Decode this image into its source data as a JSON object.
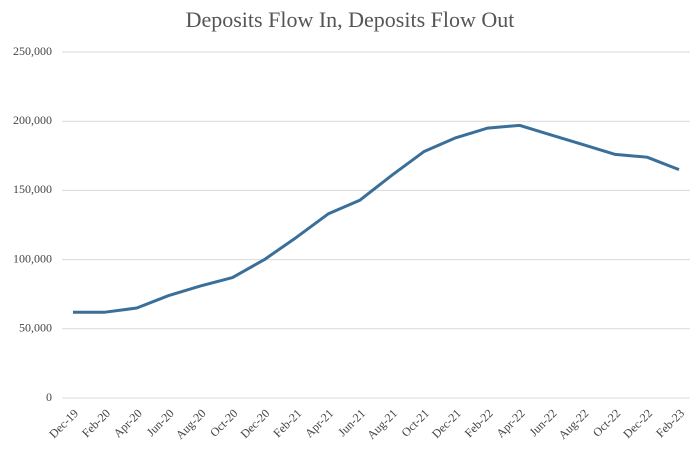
{
  "chart_data": {
    "type": "line",
    "title": "Deposits Flow In, Deposits Flow Out",
    "categories": [
      "Dec-19",
      "Feb-20",
      "Apr-20",
      "Jun-20",
      "Aug-20",
      "Oct-20",
      "Dec-20",
      "Feb-21",
      "Apr-21",
      "Jun-21",
      "Aug-21",
      "Oct-21",
      "Dec-21",
      "Feb-22",
      "Apr-22",
      "Jun-22",
      "Aug-22",
      "Oct-22",
      "Dec-22",
      "Feb-23"
    ],
    "series": [
      {
        "name": "Deposits",
        "color": "#3a6f9a",
        "values": [
          62000,
          62000,
          65000,
          74000,
          81000,
          87000,
          100000,
          116000,
          133000,
          143000,
          161000,
          178000,
          188000,
          195000,
          197000,
          190000,
          183000,
          176000,
          174000,
          165000
        ]
      }
    ],
    "ylim": [
      0,
      250000
    ],
    "yticks": [
      0,
      {
        "value": 50000,
        "label": "50,000"
      },
      {
        "value": 100000,
        "label": "100,000"
      },
      {
        "value": 150000,
        "label": "150,000"
      },
      {
        "value": 200000,
        "label": "200,000"
      },
      {
        "value": 250000,
        "label": "250,000"
      }
    ],
    "grid": true
  }
}
